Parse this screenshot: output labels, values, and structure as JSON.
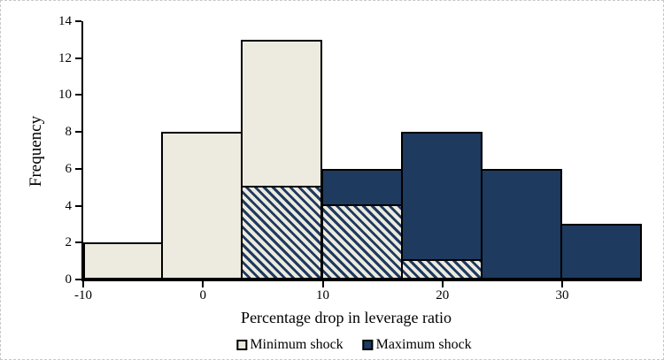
{
  "figure": {
    "background": "#ffffff",
    "border_color": "#c8c8c8"
  },
  "chart_data": {
    "type": "bar",
    "subtype": "overlapping-histogram",
    "title": "",
    "xlabel": "Percentage drop in leverage ratio",
    "ylabel": "Frequency",
    "xlim": [
      -10,
      36.67
    ],
    "ylim": [
      0,
      14
    ],
    "grid": false,
    "legend_position": "bottom",
    "bin_edges": [
      -10,
      -3.33,
      3.33,
      10,
      16.67,
      23.33,
      30,
      36.67
    ],
    "x_ticks": [
      -10,
      0,
      10,
      20,
      30
    ],
    "y_ticks": [
      0,
      2,
      4,
      6,
      8,
      10,
      12,
      14
    ],
    "series": [
      {
        "name": "Minimum shock",
        "color": "#EDEADF",
        "values": [
          2,
          8,
          13,
          4,
          1,
          0,
          0
        ]
      },
      {
        "name": "Maximum shock",
        "color": "#1E3A5F",
        "values": [
          0,
          0,
          5,
          6,
          8,
          6,
          3
        ]
      }
    ],
    "overlap_note": "Where both series occupy a bin, the overlapping portion is drawn with navy diagonal hatching on cream"
  },
  "legend": {
    "items": [
      {
        "label": "Minimum shock",
        "swatch_color": "#EDEADF"
      },
      {
        "label": "Maximum shock",
        "swatch_color": "#1E3A5F"
      }
    ]
  }
}
